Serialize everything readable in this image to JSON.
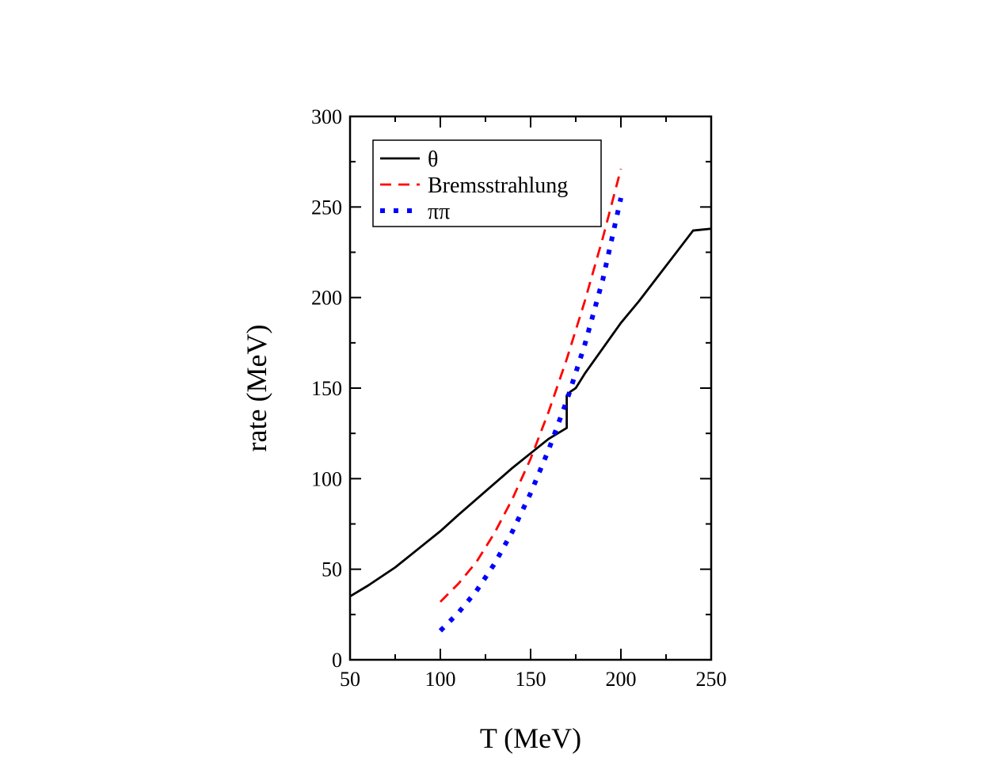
{
  "chart_data": {
    "type": "line",
    "xlabel": "T (MeV)",
    "ylabel": "rate (MeV)",
    "xlim": [
      50,
      250
    ],
    "ylim": [
      0,
      300
    ],
    "xticks": [
      50,
      100,
      150,
      200,
      250
    ],
    "yticks": [
      0,
      50,
      100,
      150,
      200,
      250,
      300
    ],
    "x_minor_step": 25,
    "y_minor_step": 25,
    "grid": false,
    "legend_position": "top-left",
    "series": [
      {
        "name": "θ",
        "color": "#000000",
        "style": "solid",
        "x": [
          50,
          60,
          75,
          90,
          100,
          110,
          125,
          140,
          150,
          160,
          170,
          170,
          172,
          175,
          180,
          190,
          200,
          210,
          220,
          230,
          240,
          250
        ],
        "y": [
          35,
          41,
          51,
          63,
          71,
          80,
          93,
          106,
          114,
          122,
          128,
          146,
          148,
          150,
          158,
          172,
          186,
          198,
          211,
          224,
          237,
          238
        ]
      },
      {
        "name": "Bremsstrahlung",
        "color": "#ff0000",
        "style": "dashed",
        "x": [
          100,
          110,
          120,
          130,
          140,
          150,
          160,
          170,
          180,
          190,
          200
        ],
        "y": [
          32,
          42,
          54,
          70,
          89,
          111,
          137,
          166,
          198,
          233,
          271
        ]
      },
      {
        "name": "ππ",
        "color": "#0000ff",
        "style": "dotted",
        "x": [
          100,
          110,
          120,
          130,
          140,
          150,
          160,
          170,
          180,
          190,
          200
        ],
        "y": [
          16,
          26,
          38,
          53,
          71,
          92,
          116,
          143,
          174,
          210,
          255
        ]
      }
    ]
  }
}
